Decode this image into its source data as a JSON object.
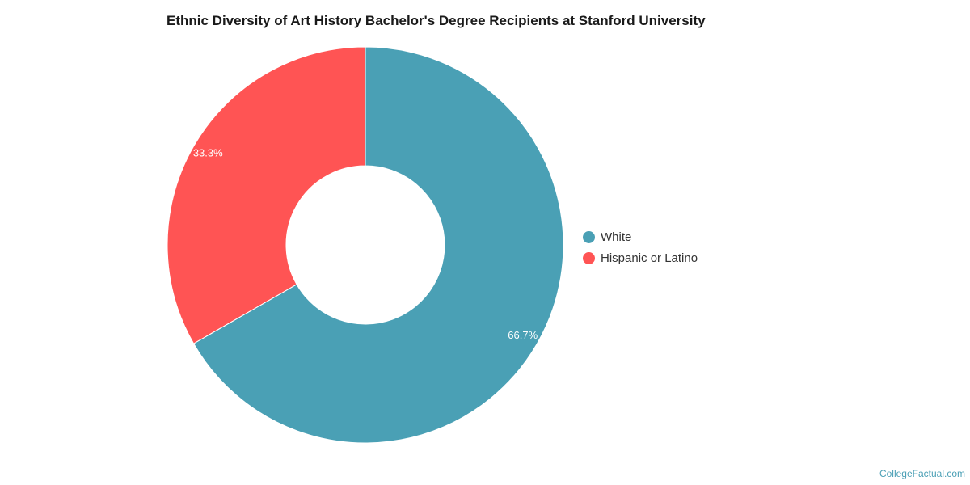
{
  "chart_data": {
    "type": "pie",
    "title": "Ethnic Diversity of Art History Bachelor's Degree Recipients at Stanford University",
    "categories": [
      "White",
      "Hispanic or Latino"
    ],
    "values": [
      66.7,
      33.3
    ],
    "labels": [
      "66.7%",
      "33.3%"
    ],
    "colors": [
      "#4aa0b5",
      "#ff5454"
    ],
    "donut": true,
    "legend_position": "right"
  },
  "watermark": "CollegeFactual.com"
}
